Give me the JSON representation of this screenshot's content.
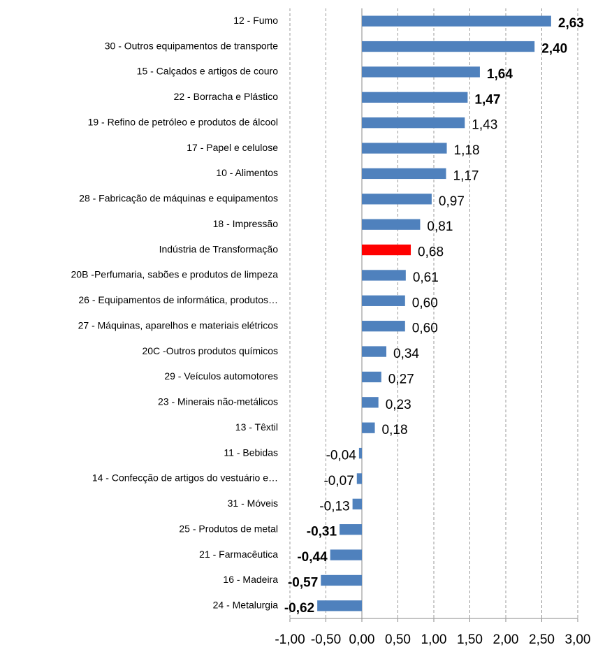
{
  "chart_data": {
    "type": "bar",
    "orientation": "horizontal",
    "categories": [
      "12 - Fumo",
      "30 - Outros equipamentos de transporte",
      "15 - Calçados e artigos de couro",
      "22 - Borracha e Plástico",
      "19 - Refino de petróleo e produtos de álcool",
      "17 - Papel e celulose",
      "10 - Alimentos",
      "28 - Fabricação de máquinas e equipamentos",
      "18 - Impressão",
      "Indústria de Transformação",
      "20B -Perfumaria, sabões e produtos de limpeza",
      "26 - Equipamentos de informática, produtos…",
      "27 - Máquinas, aparelhos e materiais elétricos",
      "20C -Outros produtos químicos",
      "29 - Veículos automotores",
      "23 - Minerais não-metálicos",
      "13 - Têxtil",
      "11 - Bebidas",
      "14 - Confecção de artigos do vestuário e…",
      "31 - Móveis",
      "25 - Produtos de metal",
      "21 - Farmacêutica",
      "16 - Madeira",
      "24 - Metalurgia"
    ],
    "values": [
      2.63,
      2.4,
      1.64,
      1.47,
      1.43,
      1.18,
      1.17,
      0.97,
      0.81,
      0.68,
      0.61,
      0.6,
      0.6,
      0.34,
      0.27,
      0.23,
      0.18,
      -0.04,
      -0.07,
      -0.13,
      -0.31,
      -0.44,
      -0.57,
      -0.62
    ],
    "value_labels": [
      "2,63",
      "2,40",
      "1,64",
      "1,47",
      "1,43",
      "1,18",
      "1,17",
      "0,97",
      "0,81",
      "0,68",
      "0,61",
      "0,60",
      "0,60",
      "0,34",
      "0,27",
      "0,23",
      "0,18",
      "-0,04",
      "-0,07",
      "-0,13",
      "-0,31",
      "-0,44",
      "-0,57",
      "-0,62"
    ],
    "value_label_bold": [
      true,
      true,
      true,
      true,
      false,
      false,
      false,
      false,
      false,
      false,
      false,
      false,
      false,
      false,
      false,
      false,
      false,
      false,
      false,
      false,
      true,
      true,
      true,
      true
    ],
    "colors": [
      "#4f81bd",
      "#4f81bd",
      "#4f81bd",
      "#4f81bd",
      "#4f81bd",
      "#4f81bd",
      "#4f81bd",
      "#4f81bd",
      "#4f81bd",
      "#ff0000",
      "#4f81bd",
      "#4f81bd",
      "#4f81bd",
      "#4f81bd",
      "#4f81bd",
      "#4f81bd",
      "#4f81bd",
      "#4f81bd",
      "#4f81bd",
      "#4f81bd",
      "#4f81bd",
      "#4f81bd",
      "#4f81bd",
      "#4f81bd"
    ],
    "xlim": [
      -1.0,
      3.0
    ],
    "xticks": [
      {
        "value": -1.0,
        "label": "-1,00"
      },
      {
        "value": -0.5,
        "label": "-0,50"
      },
      {
        "value": 0,
        "label": "0,00"
      },
      {
        "value": 0.5,
        "label": "0,50"
      },
      {
        "value": 1.0,
        "label": "1,00"
      },
      {
        "value": 1.5,
        "label": "1,50"
      },
      {
        "value": 2.0,
        "label": "2,00"
      },
      {
        "value": 2.5,
        "label": "2,50"
      },
      {
        "value": 3.0,
        "label": "3,00"
      }
    ],
    "grid": true
  }
}
